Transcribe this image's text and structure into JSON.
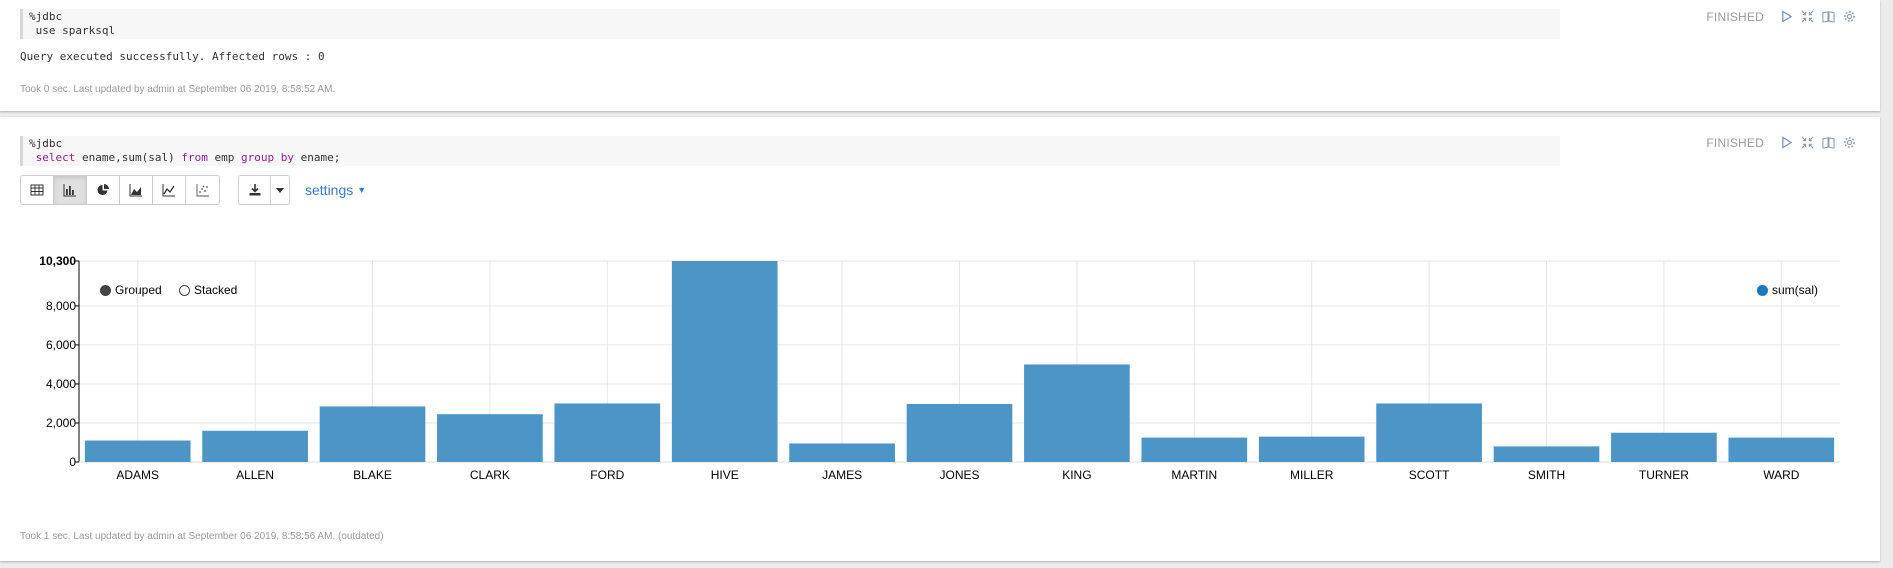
{
  "paragraph1": {
    "code_lines": [
      "%jdbc",
      " use sparksql"
    ],
    "status": "FINISHED",
    "result": "Query executed successfully. Affected rows : 0",
    "footer": "Took 0 sec. Last updated by admin at September 06 2019, 8:58:52 AM."
  },
  "paragraph2": {
    "code_line1": "%jdbc",
    "code_line2": {
      "kw1": "select",
      "mid1": " ename,sum(sal) ",
      "kw2": "from",
      "mid2": " emp ",
      "kw3": "group by",
      "tail": " ename;"
    },
    "status": "FINISHED",
    "toolbar": {
      "chart_types": [
        "table-icon",
        "bar-chart-icon",
        "pie-chart-icon",
        "area-chart-icon",
        "line-chart-icon",
        "scatter-chart-icon"
      ],
      "active_type": "bar-chart-icon",
      "settings_label": "settings"
    },
    "footer": "Took 1 sec. Last updated by admin at September 06 2019, 8:58:56 AM. (outdated)"
  },
  "chart_data": {
    "type": "bar",
    "categories": [
      "ADAMS",
      "ALLEN",
      "BLAKE",
      "CLARK",
      "FORD",
      "HIVE",
      "JAMES",
      "JONES",
      "KING",
      "MARTIN",
      "MILLER",
      "SCOTT",
      "SMITH",
      "TURNER",
      "WARD"
    ],
    "series": [
      {
        "name": "sum(sal)",
        "values": [
          1100,
          1600,
          2850,
          2450,
          3000,
          10300,
          950,
          2975,
          5000,
          1250,
          1300,
          3000,
          800,
          1500,
          1250
        ]
      }
    ],
    "yticks": [
      "0",
      "2,000",
      "4,000",
      "6,000",
      "8,000",
      "10,300"
    ],
    "ylim": [
      0,
      10300
    ],
    "grid": true,
    "bar_color": "#4d95c7",
    "legend_modes": [
      "Grouped",
      "Stacked"
    ],
    "selected_mode": "Grouped",
    "series_legend_position": "top-right"
  }
}
